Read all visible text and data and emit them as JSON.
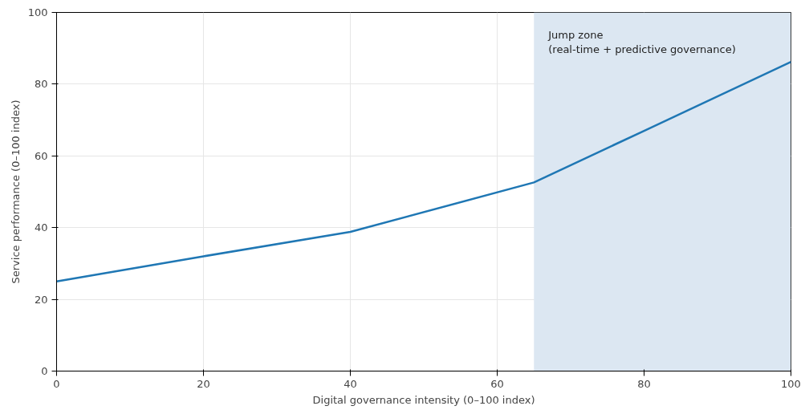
{
  "chart_data": {
    "type": "line",
    "xlabel": "Digital governance intensity (0–100 index)",
    "ylabel": "Service performance (0–100 index)",
    "x": [
      0,
      20,
      40,
      65,
      80,
      100
    ],
    "series": [
      {
        "color": "#1f77b4",
        "values": [
          25,
          32,
          38.8,
          52.6,
          67,
          86.2
        ]
      }
    ],
    "xlim": [
      0,
      100
    ],
    "ylim": [
      0,
      100
    ],
    "xticks": [
      0,
      20,
      40,
      60,
      80,
      100
    ],
    "yticks": [
      0,
      20,
      40,
      60,
      80,
      100
    ],
    "bands": [
      {
        "axis": "x",
        "from": 65,
        "to": 100,
        "color": "#dce7f2"
      }
    ],
    "annotations": [
      "Jump zone\n(real-time + predictive governance)"
    ],
    "grid": true,
    "line_style": "solid",
    "marker": "none"
  }
}
